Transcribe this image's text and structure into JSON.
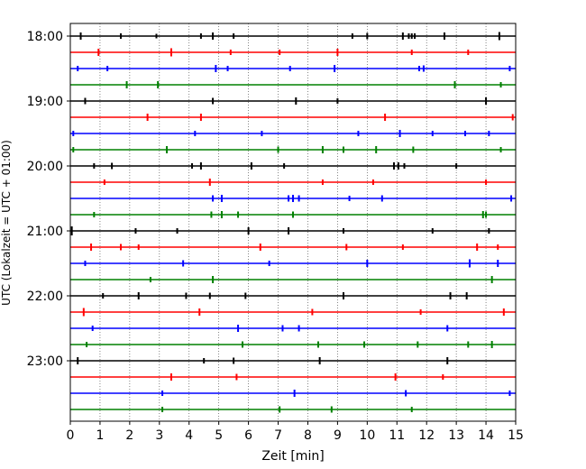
{
  "chart_data": {
    "type": "line",
    "title": "",
    "xlabel": "Zeit  [min]",
    "ylabel": "UTC (Lokalzeit = UTC + 01:00)",
    "xlim": [
      0,
      15
    ],
    "x_ticks": [
      0,
      1,
      2,
      3,
      4,
      5,
      6,
      7,
      8,
      9,
      10,
      11,
      12,
      13,
      14,
      15
    ],
    "y_tick_labels": [
      "18:00",
      "19:00",
      "20:00",
      "21:00",
      "22:00",
      "23:00"
    ],
    "grid": "vertical dotted",
    "colors": [
      "#000000",
      "#ff0000",
      "#0000ff",
      "#008000"
    ],
    "traces": [
      {
        "start": "18:00",
        "color": "#000000",
        "events": [
          {
            "t": 0.35,
            "a": 4
          },
          {
            "t": 1.7,
            "a": 3
          },
          {
            "t": 2.9,
            "a": 2.5
          },
          {
            "t": 4.4,
            "a": 3
          },
          {
            "t": 4.8,
            "a": 4
          },
          {
            "t": 5.5,
            "a": 3
          },
          {
            "t": 9.5,
            "a": 3
          },
          {
            "t": 10,
            "a": 3.5
          },
          {
            "t": 11.2,
            "a": 4
          },
          {
            "t": 11.4,
            "a": 3
          },
          {
            "t": 11.5,
            "a": 3
          },
          {
            "t": 11.6,
            "a": 3
          },
          {
            "t": 12.6,
            "a": 4
          },
          {
            "t": 14.45,
            "a": 4.5
          }
        ]
      },
      {
        "start": "18:15",
        "color": "#ff0000",
        "events": [
          {
            "t": 0.95,
            "a": 4
          },
          {
            "t": 3.4,
            "a": 4.5
          },
          {
            "t": 5.4,
            "a": 3
          },
          {
            "t": 7.05,
            "a": 3
          },
          {
            "t": 9,
            "a": 4
          },
          {
            "t": 11.5,
            "a": 3
          },
          {
            "t": 13.4,
            "a": 3
          }
        ]
      },
      {
        "start": "18:30",
        "color": "#0000ff",
        "events": [
          {
            "t": 0.25,
            "a": 3
          },
          {
            "t": 1.25,
            "a": 3
          },
          {
            "t": 4.9,
            "a": 4
          },
          {
            "t": 5.3,
            "a": 3
          },
          {
            "t": 7.4,
            "a": 3
          },
          {
            "t": 8.9,
            "a": 4
          },
          {
            "t": 11.75,
            "a": 3
          },
          {
            "t": 11.9,
            "a": 3.5
          },
          {
            "t": 14.8,
            "a": 3
          }
        ]
      },
      {
        "start": "18:45",
        "color": "#008000",
        "events": [
          {
            "t": 1.9,
            "a": 4
          },
          {
            "t": 2.95,
            "a": 4
          },
          {
            "t": 12.95,
            "a": 4
          },
          {
            "t": 14.5,
            "a": 3
          }
        ]
      },
      {
        "start": "19:00",
        "color": "#000000",
        "events": [
          {
            "t": 0.5,
            "a": 3.5
          },
          {
            "t": 4.8,
            "a": 3.5
          },
          {
            "t": 7.6,
            "a": 4
          },
          {
            "t": 9,
            "a": 3
          },
          {
            "t": 14,
            "a": 4
          }
        ]
      },
      {
        "start": "19:15",
        "color": "#ff0000",
        "events": [
          {
            "t": 2.6,
            "a": 4
          },
          {
            "t": 4.4,
            "a": 4
          },
          {
            "t": 10.6,
            "a": 4
          },
          {
            "t": 14.9,
            "a": 3.5
          }
        ]
      },
      {
        "start": "19:30",
        "color": "#0000ff",
        "events": [
          {
            "t": 0.1,
            "a": 3
          },
          {
            "t": 4.2,
            "a": 3
          },
          {
            "t": 6.45,
            "a": 3
          },
          {
            "t": 9.7,
            "a": 3
          },
          {
            "t": 11.1,
            "a": 4
          },
          {
            "t": 12.2,
            "a": 3
          },
          {
            "t": 13.3,
            "a": 3
          },
          {
            "t": 14.1,
            "a": 3
          }
        ]
      },
      {
        "start": "19:45",
        "color": "#008000",
        "events": [
          {
            "t": 0.1,
            "a": 3
          },
          {
            "t": 3.25,
            "a": 4
          },
          {
            "t": 7,
            "a": 3.5
          },
          {
            "t": 8.5,
            "a": 4
          },
          {
            "t": 9.2,
            "a": 3.5
          },
          {
            "t": 10.3,
            "a": 4
          },
          {
            "t": 11.55,
            "a": 3.5
          },
          {
            "t": 14.5,
            "a": 3
          }
        ]
      },
      {
        "start": "20:00",
        "color": "#000000",
        "events": [
          {
            "t": 0.8,
            "a": 3
          },
          {
            "t": 1.4,
            "a": 3.5
          },
          {
            "t": 4.1,
            "a": 3
          },
          {
            "t": 4.4,
            "a": 4
          },
          {
            "t": 6.1,
            "a": 4
          },
          {
            "t": 7.2,
            "a": 3
          },
          {
            "t": 10.9,
            "a": 4
          },
          {
            "t": 11.05,
            "a": 4
          },
          {
            "t": 11.25,
            "a": 3
          },
          {
            "t": 13,
            "a": 3
          }
        ]
      },
      {
        "start": "20:15",
        "color": "#ff0000",
        "events": [
          {
            "t": 1.15,
            "a": 3
          },
          {
            "t": 4.7,
            "a": 4
          },
          {
            "t": 8.5,
            "a": 3
          },
          {
            "t": 10.2,
            "a": 3
          },
          {
            "t": 14,
            "a": 3
          }
        ]
      },
      {
        "start": "20:30",
        "color": "#0000ff",
        "events": [
          {
            "t": 4.8,
            "a": 3.5
          },
          {
            "t": 5.1,
            "a": 4
          },
          {
            "t": 7.35,
            "a": 3.5
          },
          {
            "t": 7.5,
            "a": 4
          },
          {
            "t": 7.7,
            "a": 3.5
          },
          {
            "t": 9.4,
            "a": 3
          },
          {
            "t": 10.5,
            "a": 3.5
          },
          {
            "t": 14.85,
            "a": 3.5
          }
        ]
      },
      {
        "start": "20:45",
        "color": "#008000",
        "events": [
          {
            "t": 0.8,
            "a": 3
          },
          {
            "t": 4.75,
            "a": 3.5
          },
          {
            "t": 5.1,
            "a": 4
          },
          {
            "t": 5.65,
            "a": 3.5
          },
          {
            "t": 7.5,
            "a": 3.5
          },
          {
            "t": 13.9,
            "a": 4
          },
          {
            "t": 14,
            "a": 3.5
          }
        ]
      },
      {
        "start": "21:00",
        "color": "#000000",
        "events": [
          {
            "t": 0.05,
            "a": 5
          },
          {
            "t": 2.2,
            "a": 3
          },
          {
            "t": 3.6,
            "a": 3
          },
          {
            "t": 6,
            "a": 4
          },
          {
            "t": 7.35,
            "a": 4
          },
          {
            "t": 9.2,
            "a": 3
          },
          {
            "t": 12.2,
            "a": 3
          },
          {
            "t": 14.1,
            "a": 3
          }
        ]
      },
      {
        "start": "21:15",
        "color": "#ff0000",
        "events": [
          {
            "t": 0.7,
            "a": 4
          },
          {
            "t": 1.7,
            "a": 3.5
          },
          {
            "t": 2.3,
            "a": 3
          },
          {
            "t": 6.4,
            "a": 4
          },
          {
            "t": 9.3,
            "a": 3.5
          },
          {
            "t": 11.2,
            "a": 3
          },
          {
            "t": 13.7,
            "a": 4
          },
          {
            "t": 14.4,
            "a": 3
          }
        ]
      },
      {
        "start": "21:30",
        "color": "#0000ff",
        "events": [
          {
            "t": 0.5,
            "a": 3
          },
          {
            "t": 3.8,
            "a": 3.5
          },
          {
            "t": 6.7,
            "a": 3
          },
          {
            "t": 10,
            "a": 4
          },
          {
            "t": 13.45,
            "a": 4.5
          },
          {
            "t": 14.4,
            "a": 4
          }
        ]
      },
      {
        "start": "21:45",
        "color": "#008000",
        "events": [
          {
            "t": 2.7,
            "a": 3
          },
          {
            "t": 4.8,
            "a": 4
          },
          {
            "t": 14.2,
            "a": 4
          }
        ]
      },
      {
        "start": "22:00",
        "color": "#000000",
        "events": [
          {
            "t": 1.1,
            "a": 3
          },
          {
            "t": 2.3,
            "a": 4
          },
          {
            "t": 3.9,
            "a": 3.5
          },
          {
            "t": 4.7,
            "a": 3.5
          },
          {
            "t": 5.9,
            "a": 3.5
          },
          {
            "t": 9.2,
            "a": 4
          },
          {
            "t": 12.8,
            "a": 4
          },
          {
            "t": 13.35,
            "a": 4
          }
        ]
      },
      {
        "start": "22:15",
        "color": "#ff0000",
        "events": [
          {
            "t": 0.45,
            "a": 4.5
          },
          {
            "t": 4.35,
            "a": 4
          },
          {
            "t": 8.15,
            "a": 3.5
          },
          {
            "t": 11.8,
            "a": 3
          },
          {
            "t": 14.6,
            "a": 4
          }
        ]
      },
      {
        "start": "22:30",
        "color": "#0000ff",
        "events": [
          {
            "t": 0.75,
            "a": 3
          },
          {
            "t": 5.65,
            "a": 4
          },
          {
            "t": 7.15,
            "a": 3.5
          },
          {
            "t": 7.7,
            "a": 3.5
          },
          {
            "t": 12.7,
            "a": 3.5
          }
        ]
      },
      {
        "start": "22:45",
        "color": "#008000",
        "events": [
          {
            "t": 0.55,
            "a": 3
          },
          {
            "t": 5.8,
            "a": 3.5
          },
          {
            "t": 8.35,
            "a": 3.5
          },
          {
            "t": 9.9,
            "a": 3.5
          },
          {
            "t": 11.7,
            "a": 3.5
          },
          {
            "t": 13.4,
            "a": 3.5
          },
          {
            "t": 14.2,
            "a": 4
          }
        ]
      },
      {
        "start": "23:00",
        "color": "#000000",
        "events": [
          {
            "t": 0.25,
            "a": 4
          },
          {
            "t": 4.5,
            "a": 3
          },
          {
            "t": 5.5,
            "a": 3.5
          },
          {
            "t": 8.4,
            "a": 4
          },
          {
            "t": 12.7,
            "a": 4
          }
        ]
      },
      {
        "start": "23:15",
        "color": "#ff0000",
        "events": [
          {
            "t": 3.4,
            "a": 4
          },
          {
            "t": 5.6,
            "a": 3.5
          },
          {
            "t": 10.95,
            "a": 4
          },
          {
            "t": 12.55,
            "a": 3
          }
        ]
      },
      {
        "start": "23:30",
        "color": "#0000ff",
        "events": [
          {
            "t": 3.1,
            "a": 3
          },
          {
            "t": 7.55,
            "a": 4
          },
          {
            "t": 11.3,
            "a": 3.5
          },
          {
            "t": 14.8,
            "a": 3
          }
        ]
      },
      {
        "start": "23:45",
        "color": "#008000",
        "events": [
          {
            "t": 3.1,
            "a": 3
          },
          {
            "t": 7.05,
            "a": 3.5
          },
          {
            "t": 8.8,
            "a": 3.5
          },
          {
            "t": 11.5,
            "a": 3
          }
        ]
      }
    ]
  }
}
